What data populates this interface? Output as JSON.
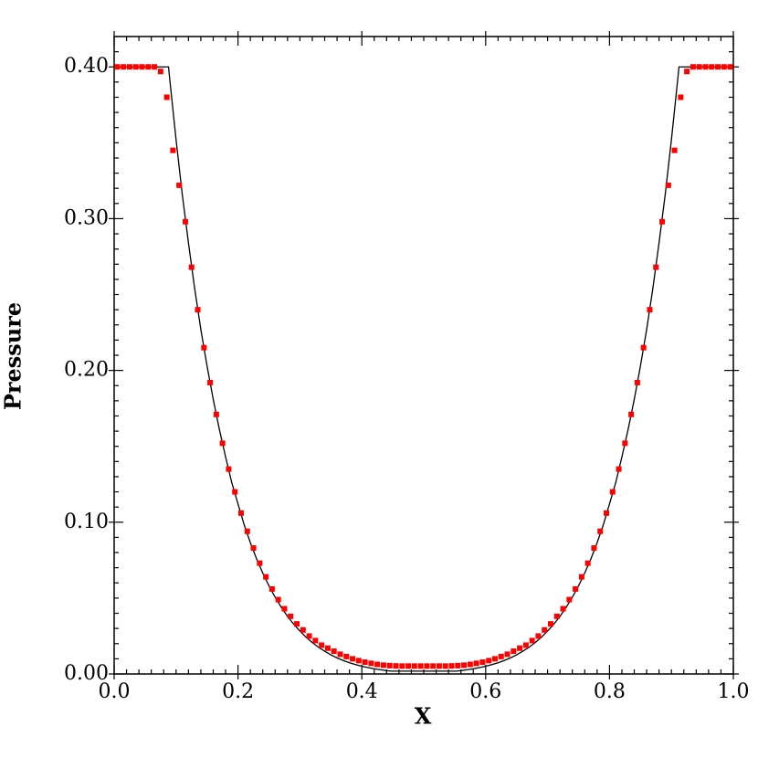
{
  "chart_data": {
    "type": "line",
    "xlabel": "X",
    "ylabel": "Pressure",
    "xlim": [
      0,
      1
    ],
    "ylim": [
      0,
      0.42
    ],
    "xticks": [
      {
        "value": 0,
        "label": "0.0"
      },
      {
        "value": 0.2,
        "label": "0.2"
      },
      {
        "value": 0.4,
        "label": "0.4"
      },
      {
        "value": 0.6,
        "label": "0.6"
      },
      {
        "value": 0.8,
        "label": "0.8"
      },
      {
        "value": 1,
        "label": "1.0"
      }
    ],
    "yticks": [
      {
        "value": 0,
        "label": "0.00"
      },
      {
        "value": 0.1,
        "label": "0.10"
      },
      {
        "value": 0.2,
        "label": "0.20"
      },
      {
        "value": 0.3,
        "label": "0.30"
      },
      {
        "value": 0.4,
        "label": "0.40"
      }
    ],
    "x_minor_divisions": 10,
    "y_minor_divisions": 10,
    "series": [
      {
        "type": "line",
        "color": "#000000",
        "x": [
          0,
          0.0878,
          0.09,
          0.1,
          0.11,
          0.12,
          0.13,
          0.14,
          0.15,
          0.16,
          0.17,
          0.18,
          0.19,
          0.2,
          0.21,
          0.22,
          0.23,
          0.24,
          0.25,
          0.26,
          0.27,
          0.28,
          0.29,
          0.3,
          0.31,
          0.32,
          0.33,
          0.34,
          0.35,
          0.36,
          0.37,
          0.38,
          0.39,
          0.4,
          0.41,
          0.42,
          0.43,
          0.44,
          0.4478,
          0.5522,
          0.56,
          0.57,
          0.58,
          0.59,
          0.6,
          0.61,
          0.62,
          0.63,
          0.64,
          0.65,
          0.66,
          0.67,
          0.68,
          0.69,
          0.7,
          0.71,
          0.72,
          0.73,
          0.74,
          0.75,
          0.76,
          0.77,
          0.78,
          0.79,
          0.8,
          0.81,
          0.82,
          0.83,
          0.84,
          0.85,
          0.86,
          0.87,
          0.88,
          0.89,
          0.9,
          0.91,
          0.9122,
          1
        ],
        "values": [
          0.4,
          0.4,
          0.391,
          0.352,
          0.316,
          0.284,
          0.254,
          0.227,
          0.203,
          0.181,
          0.161,
          0.143,
          0.126,
          0.112,
          0.0983,
          0.0865,
          0.0759,
          0.0665,
          0.0581,
          0.0506,
          0.0439,
          0.038,
          0.0328,
          0.0283,
          0.0242,
          0.0207,
          0.0176,
          0.015,
          0.0126,
          0.0106,
          0.0089,
          0.0074,
          0.0062,
          0.0051,
          0.0042,
          0.0034,
          0.0028,
          0.0022,
          0.0019,
          0.0019,
          0.0022,
          0.0028,
          0.0034,
          0.0042,
          0.0051,
          0.0062,
          0.0074,
          0.0089,
          0.0106,
          0.0126,
          0.015,
          0.0176,
          0.0207,
          0.0242,
          0.0283,
          0.0328,
          0.038,
          0.0439,
          0.0506,
          0.0581,
          0.0665,
          0.0759,
          0.0865,
          0.0983,
          0.112,
          0.126,
          0.143,
          0.161,
          0.181,
          0.203,
          0.227,
          0.254,
          0.284,
          0.316,
          0.352,
          0.391,
          0.4,
          0.4
        ]
      },
      {
        "type": "scatter",
        "color": "#ff0000",
        "x": [
          0.005,
          0.015,
          0.025,
          0.035,
          0.045,
          0.055,
          0.065,
          0.075,
          0.085,
          0.095,
          0.105,
          0.115,
          0.125,
          0.135,
          0.145,
          0.155,
          0.165,
          0.175,
          0.185,
          0.195,
          0.205,
          0.215,
          0.225,
          0.235,
          0.245,
          0.255,
          0.265,
          0.275,
          0.285,
          0.295,
          0.305,
          0.315,
          0.325,
          0.335,
          0.345,
          0.355,
          0.365,
          0.375,
          0.385,
          0.395,
          0.405,
          0.415,
          0.425,
          0.435,
          0.445,
          0.455,
          0.465,
          0.475,
          0.485,
          0.495,
          0.505,
          0.515,
          0.525,
          0.535,
          0.545,
          0.555,
          0.565,
          0.575,
          0.585,
          0.595,
          0.605,
          0.615,
          0.625,
          0.635,
          0.645,
          0.655,
          0.665,
          0.675,
          0.685,
          0.695,
          0.705,
          0.715,
          0.725,
          0.735,
          0.745,
          0.755,
          0.765,
          0.775,
          0.785,
          0.795,
          0.805,
          0.815,
          0.825,
          0.835,
          0.845,
          0.855,
          0.865,
          0.875,
          0.885,
          0.895,
          0.905,
          0.915,
          0.925,
          0.935,
          0.945,
          0.955,
          0.965,
          0.975,
          0.985,
          0.995
        ],
        "values": [
          0.4,
          0.4,
          0.4,
          0.4,
          0.4,
          0.4,
          0.4,
          0.397,
          0.38,
          0.345,
          0.322,
          0.298,
          0.268,
          0.24,
          0.215,
          0.192,
          0.171,
          0.152,
          0.135,
          0.12,
          0.106,
          0.094,
          0.083,
          0.073,
          0.064,
          0.056,
          0.049,
          0.043,
          0.038,
          0.033,
          0.029,
          0.025,
          0.022,
          0.019,
          0.017,
          0.015,
          0.013,
          0.0115,
          0.01,
          0.0088,
          0.0078,
          0.007,
          0.0063,
          0.0058,
          0.0055,
          0.0053,
          0.0052,
          0.0052,
          0.0052,
          0.0052,
          0.0052,
          0.0052,
          0.0052,
          0.0052,
          0.0053,
          0.0055,
          0.0058,
          0.0063,
          0.007,
          0.0078,
          0.0088,
          0.01,
          0.0115,
          0.013,
          0.015,
          0.017,
          0.019,
          0.022,
          0.025,
          0.029,
          0.033,
          0.038,
          0.043,
          0.049,
          0.056,
          0.064,
          0.073,
          0.083,
          0.094,
          0.106,
          0.12,
          0.135,
          0.152,
          0.171,
          0.192,
          0.215,
          0.24,
          0.268,
          0.298,
          0.322,
          0.345,
          0.38,
          0.397,
          0.4,
          0.4,
          0.4,
          0.4,
          0.4,
          0.4,
          0.4
        ]
      }
    ]
  }
}
